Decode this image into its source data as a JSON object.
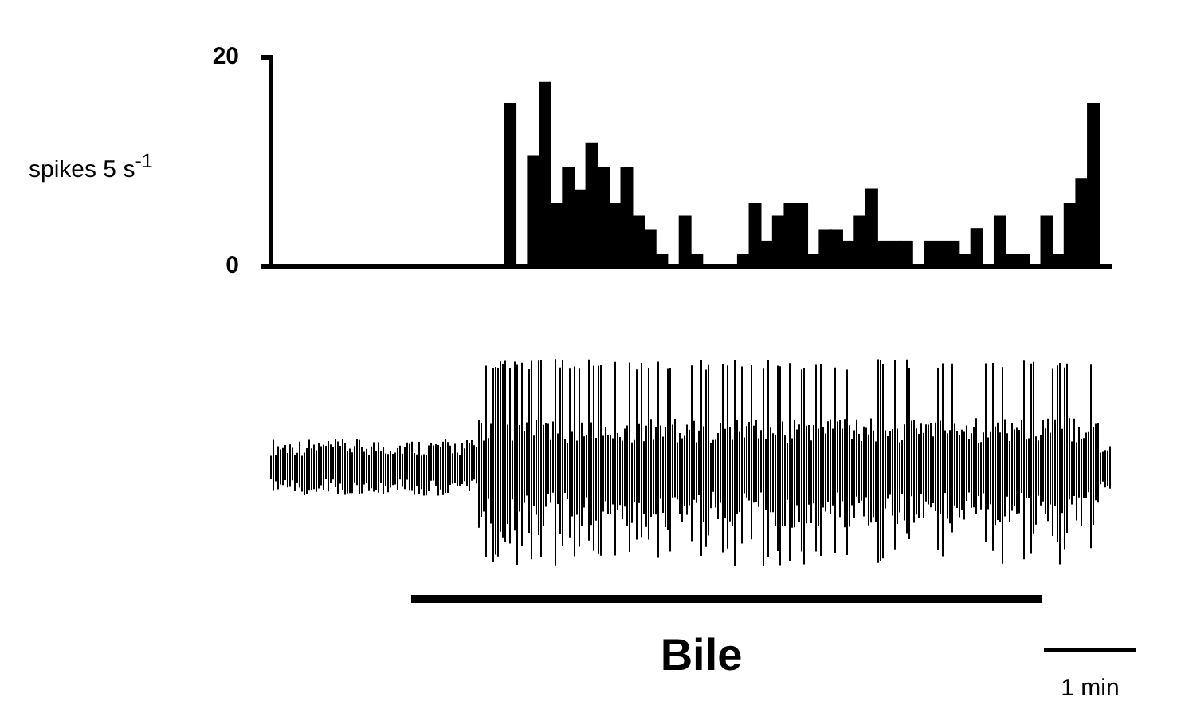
{
  "chart_data": {
    "type": "bar",
    "ylabel": "spikes 5 s$^{-1}$",
    "categories": [
      null,
      null,
      null,
      null,
      null,
      null,
      null,
      null,
      null,
      null,
      null,
      null,
      null,
      null,
      null,
      null,
      null,
      null,
      null,
      null,
      null,
      null,
      null,
      null,
      null,
      null,
      null,
      null,
      null,
      null,
      null,
      null,
      null,
      null,
      null,
      null,
      null,
      null,
      null,
      null,
      null,
      null,
      null,
      null,
      null,
      null,
      null,
      null,
      null,
      null,
      null,
      null,
      null,
      null,
      null,
      null,
      null,
      null,
      null,
      null,
      null,
      null,
      null,
      null,
      null,
      null,
      null,
      null,
      null,
      null,
      null,
      null
    ],
    "values": [
      0,
      0,
      0,
      0,
      0,
      0,
      0,
      0,
      0,
      0,
      0,
      0,
      0,
      0,
      0,
      0,
      0,
      0,
      0,
      0,
      15.6,
      0,
      10.6,
      17.6,
      6,
      9.5,
      7.3,
      11.8,
      9.5,
      6,
      9.5,
      4.8,
      3.5,
      1.1,
      0,
      4.8,
      1.1,
      0,
      0,
      0,
      1.1,
      6,
      2.4,
      4.8,
      6,
      6,
      1.1,
      3.5,
      3.5,
      2.4,
      4.8,
      7.4,
      2.4,
      2.4,
      2.4,
      0,
      2.4,
      2.4,
      2.4,
      1.1,
      3.6,
      0,
      4.8,
      1.1,
      1.1,
      0,
      4.8,
      1.1,
      6,
      8.4,
      15.6,
      0
    ],
    "color": "#000000",
    "ylim": [
      0,
      20
    ],
    "yticks": [
      0,
      20
    ],
    "grid": false,
    "legend": false,
    "tick_labels": "y",
    "annotations": [
      "Bile",
      "1 min"
    ]
  }
}
